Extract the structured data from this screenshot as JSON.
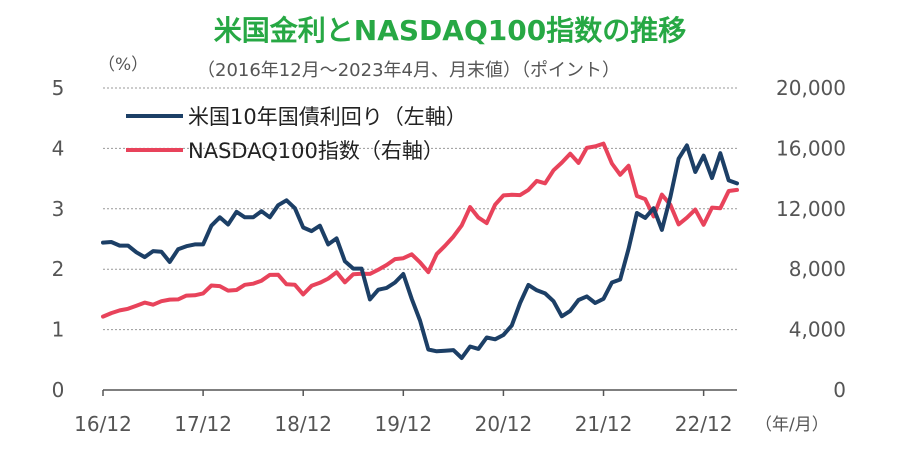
{
  "chart_data": {
    "type": "line",
    "title": "米国金利とNASDAQ100指数の推移",
    "subtitle": "（2016年12月～2023年4月、月末値）（ポイント）",
    "title_color": "#27a844",
    "left_unit": "（%）",
    "x_unit": "（年/月）",
    "x_tick_labels": [
      "16/12",
      "17/12",
      "18/12",
      "19/12",
      "20/12",
      "21/12",
      "22/12"
    ],
    "y_left_ticks": [
      "0",
      "1",
      "2",
      "3",
      "4",
      "5"
    ],
    "y_right_ticks": [
      "0",
      "4,000",
      "8,000",
      "12,000",
      "16,000",
      "20,000"
    ],
    "ylim_left": [
      0,
      5
    ],
    "ylim_right": [
      0,
      20000
    ],
    "grid": true,
    "x": [
      "2016-12",
      "2017-01",
      "2017-02",
      "2017-03",
      "2017-04",
      "2017-05",
      "2017-06",
      "2017-07",
      "2017-08",
      "2017-09",
      "2017-10",
      "2017-11",
      "2017-12",
      "2018-01",
      "2018-02",
      "2018-03",
      "2018-04",
      "2018-05",
      "2018-06",
      "2018-07",
      "2018-08",
      "2018-09",
      "2018-10",
      "2018-11",
      "2018-12",
      "2019-01",
      "2019-02",
      "2019-03",
      "2019-04",
      "2019-05",
      "2019-06",
      "2019-07",
      "2019-08",
      "2019-09",
      "2019-10",
      "2019-11",
      "2019-12",
      "2020-01",
      "2020-02",
      "2020-03",
      "2020-04",
      "2020-05",
      "2020-06",
      "2020-07",
      "2020-08",
      "2020-09",
      "2020-10",
      "2020-11",
      "2020-12",
      "2021-01",
      "2021-02",
      "2021-03",
      "2021-04",
      "2021-05",
      "2021-06",
      "2021-07",
      "2021-08",
      "2021-09",
      "2021-10",
      "2021-11",
      "2021-12",
      "2022-01",
      "2022-02",
      "2022-03",
      "2022-04",
      "2022-05",
      "2022-06",
      "2022-07",
      "2022-08",
      "2022-09",
      "2022-10",
      "2022-11",
      "2022-12",
      "2023-01",
      "2023-02",
      "2023-03",
      "2023-04"
    ],
    "series": [
      {
        "name": "米国10年国債利回り（左軸）",
        "axis": "left",
        "color": "#1c3f66",
        "values": [
          2.44,
          2.45,
          2.39,
          2.39,
          2.28,
          2.2,
          2.3,
          2.29,
          2.12,
          2.33,
          2.38,
          2.41,
          2.41,
          2.72,
          2.86,
          2.74,
          2.95,
          2.86,
          2.86,
          2.96,
          2.86,
          3.06,
          3.14,
          3.01,
          2.69,
          2.63,
          2.72,
          2.41,
          2.51,
          2.13,
          2.01,
          2.01,
          1.5,
          1.66,
          1.69,
          1.78,
          1.92,
          1.51,
          1.15,
          0.67,
          0.64,
          0.65,
          0.66,
          0.53,
          0.72,
          0.68,
          0.87,
          0.84,
          0.91,
          1.07,
          1.44,
          1.74,
          1.65,
          1.6,
          1.47,
          1.22,
          1.31,
          1.49,
          1.55,
          1.44,
          1.51,
          1.78,
          1.83,
          2.34,
          2.93,
          2.85,
          3.01,
          2.65,
          3.19,
          3.83,
          4.05,
          3.61,
          3.88,
          3.51,
          3.92,
          3.47,
          3.42
        ]
      },
      {
        "name": "NASDAQ100指数（右軸）",
        "axis": "right",
        "color": "#e8435b",
        "values": [
          4860,
          5090,
          5270,
          5380,
          5580,
          5790,
          5650,
          5880,
          5990,
          6000,
          6250,
          6270,
          6400,
          6920,
          6880,
          6580,
          6620,
          6970,
          7040,
          7240,
          7620,
          7630,
          7000,
          6970,
          6330,
          6900,
          7100,
          7380,
          7800,
          7130,
          7670,
          7700,
          7690,
          7970,
          8280,
          8670,
          8730,
          8990,
          8460,
          7810,
          9000,
          9550,
          10160,
          10900,
          12110,
          11420,
          11050,
          12270,
          12890,
          12930,
          12910,
          13250,
          13850,
          13690,
          14550,
          15060,
          15650,
          15040,
          16030,
          16130,
          16320,
          15000,
          14250,
          14850,
          12850,
          12640,
          11500,
          12940,
          12270,
          10970,
          11410,
          11950,
          10940,
          12080,
          12040,
          13180,
          13250
        ]
      }
    ]
  }
}
